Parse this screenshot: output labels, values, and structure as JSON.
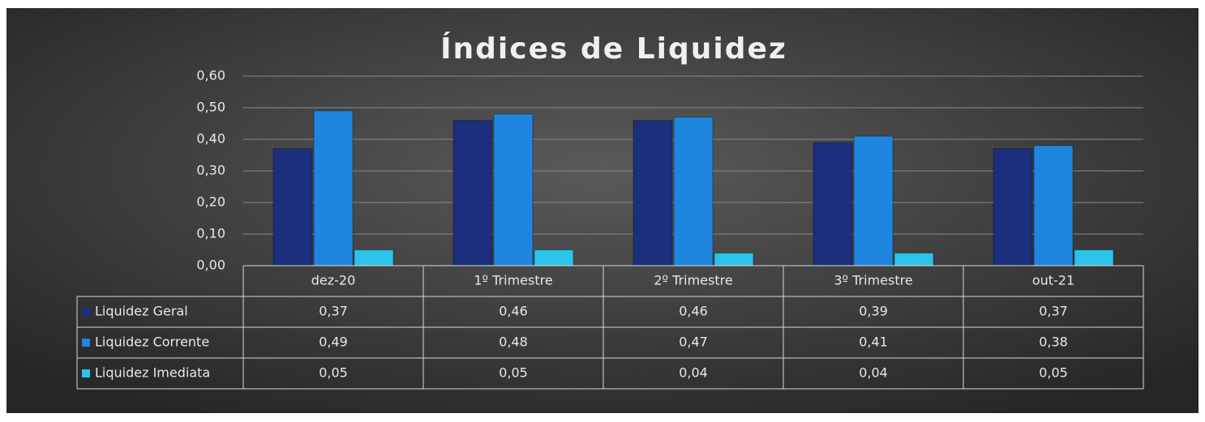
{
  "chart_data": {
    "type": "bar",
    "title": "Índices de Liquidez",
    "categories": [
      "dez-20",
      "1º Trimestre",
      "2º Trimestre",
      "3º Trimestre",
      "out-21"
    ],
    "series": [
      {
        "name": "Liquidez Geral",
        "color": "#1b2f7c",
        "values": [
          0.37,
          0.46,
          0.46,
          0.39,
          0.37
        ],
        "value_labels": [
          "0,37",
          "0,46",
          "0,46",
          "0,39",
          "0,37"
        ]
      },
      {
        "name": "Liquidez Corrente",
        "color": "#1f86e0",
        "values": [
          0.49,
          0.48,
          0.47,
          0.41,
          0.38
        ],
        "value_labels": [
          "0,49",
          "0,48",
          "0,47",
          "0,41",
          "0,38"
        ]
      },
      {
        "name": "Liquidez Imediata",
        "color": "#2cc3ea",
        "values": [
          0.05,
          0.05,
          0.04,
          0.04,
          0.05
        ],
        "value_labels": [
          "0,05",
          "0,05",
          "0,04",
          "0,04",
          "0,05"
        ]
      }
    ],
    "ylim": [
      0,
      0.6
    ],
    "yticks": [
      {
        "value": 0,
        "label": "0,00"
      },
      {
        "value": 0.1,
        "label": "0,10"
      },
      {
        "value": 0.2,
        "label": "0,20"
      },
      {
        "value": 0.3,
        "label": "0,30"
      },
      {
        "value": 0.4,
        "label": "0,40"
      },
      {
        "value": 0.5,
        "label": "0,50"
      },
      {
        "value": 0.6,
        "label": "0,60"
      }
    ],
    "grid": true,
    "legend": "table"
  }
}
